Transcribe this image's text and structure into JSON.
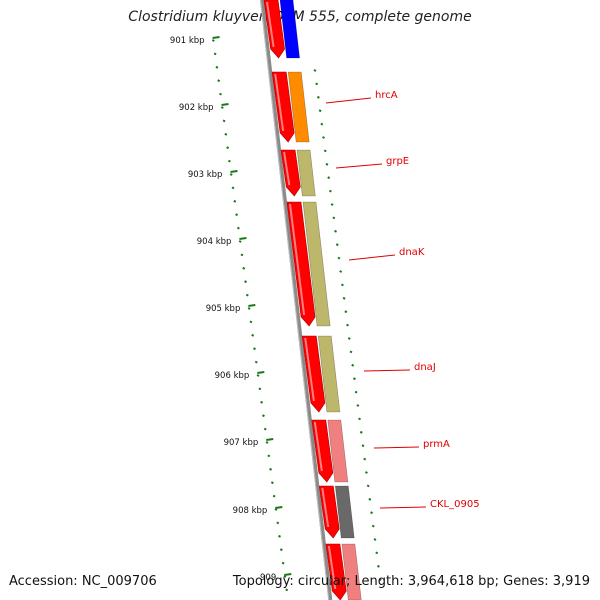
{
  "header": {
    "title": "Clostridium kluyveri DSM 555, complete genome"
  },
  "footer": {
    "accession": "Accession: NC_009706",
    "topology": "Topology: circular; Length: 3,964,618 bp; Genes: 3,919"
  },
  "scale": {
    "ticks": [
      "901 kbp",
      "902 kbp",
      "903 kbp",
      "904 kbp",
      "905 kbp",
      "906 kbp",
      "907 kbp",
      "908 kbp",
      "909"
    ]
  },
  "colors": {
    "cds_red": "#ff0000",
    "backbone": "#888888",
    "tick_green": "#1a7a1a",
    "label_red": "#e00000",
    "blue": "#0000ff",
    "orange": "#ff8c00",
    "khaki": "#bdb76b",
    "pink": "#f08080",
    "gray": "#696969"
  },
  "genes": [
    {
      "id": "g0",
      "color": "blue",
      "label": ""
    },
    {
      "id": "g1",
      "color": "orange",
      "label": "hrcA"
    },
    {
      "id": "g2",
      "color": "khaki",
      "label": "grpE"
    },
    {
      "id": "g3",
      "color": "khaki",
      "label": "dnaK"
    },
    {
      "id": "g4",
      "color": "khaki",
      "label": "dnaJ"
    },
    {
      "id": "g5",
      "color": "pink",
      "label": "prmA"
    },
    {
      "id": "g6",
      "color": "gray",
      "label": "CKL_0905"
    },
    {
      "id": "g7",
      "color": "pink",
      "label": ""
    }
  ]
}
